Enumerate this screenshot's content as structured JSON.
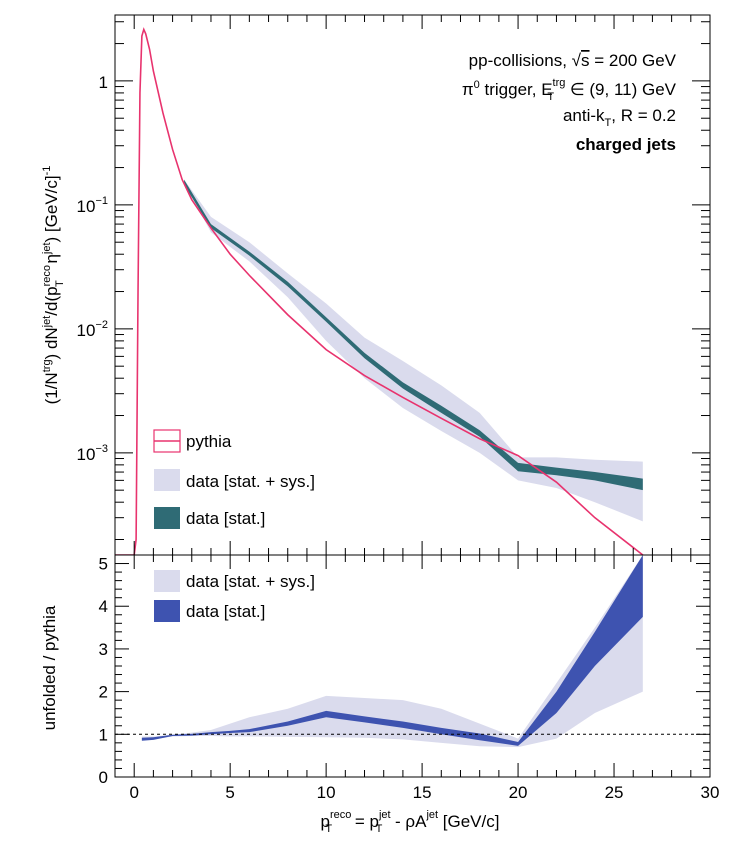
{
  "chart_data": [
    {
      "panel": "top",
      "type": "line",
      "yscale": "log",
      "xlim": [
        -1,
        30
      ],
      "ylim": [
        0.00015,
        3.4
      ],
      "ylabel": "(1/N^trg) dN^jet/d(p_T^reco η^jet) [GeV/c]^-1",
      "yticks": [
        {
          "value": 1,
          "label": "1"
        },
        {
          "value": 0.1,
          "label": "10",
          "exp": "−1"
        },
        {
          "value": 0.01,
          "label": "10",
          "exp": "−2"
        },
        {
          "value": 0.001,
          "label": "10",
          "exp": "−3"
        }
      ],
      "annotations": {
        "line1": {
          "pre": "pp-collisions, ",
          "sqrt": "s",
          "post": " = 200 GeV"
        },
        "line2": {
          "pre": "π",
          "sup0": "0",
          "mid": " trigger, E",
          "sup": "trg",
          "sub": "T",
          "post": " ∈ (9, 11) GeV"
        },
        "line3": {
          "pre": "anti-k",
          "sub": "T",
          "post": ", R = 0.2"
        },
        "line4": "charged jets"
      },
      "legend": [
        {
          "label": "pythia",
          "style": "line",
          "color": "#e8336e"
        },
        {
          "label": "data [stat. + sys.]",
          "style": "band",
          "color": "#dadbed"
        },
        {
          "label": "data [stat.]",
          "style": "band",
          "color": "#2f6b75"
        }
      ],
      "series": [
        {
          "name": "pythia",
          "color": "#e8336e",
          "x": [
            -1,
            0,
            0.1,
            0.2,
            0.3,
            0.4,
            0.5,
            0.6,
            0.8,
            1,
            1.5,
            2,
            2.5,
            3,
            4,
            5,
            6,
            8,
            10,
            12,
            14,
            16,
            18,
            20,
            22,
            24,
            26.5
          ],
          "y": [
            0.00015,
            0.00015,
            0.0002,
            0.02,
            0.8,
            2.3,
            2.6,
            2.4,
            1.8,
            1.2,
            0.55,
            0.28,
            0.16,
            0.11,
            0.065,
            0.04,
            0.027,
            0.013,
            0.0068,
            0.0042,
            0.0028,
            0.0019,
            0.0013,
            0.00095,
            0.00058,
            0.0003,
            0.00015
          ]
        },
        {
          "name": "data [stat. + sys.]",
          "color": "#dadbed",
          "x": [
            2.6,
            4,
            6,
            8,
            10,
            12,
            14,
            16,
            18,
            20,
            22,
            24,
            26.5
          ],
          "ylow": [
            0.15,
            0.06,
            0.035,
            0.018,
            0.008,
            0.004,
            0.0023,
            0.0015,
            0.001,
            0.0006,
            0.00052,
            0.0004,
            0.00028
          ],
          "yhigh": [
            0.16,
            0.08,
            0.05,
            0.028,
            0.016,
            0.0085,
            0.0055,
            0.0035,
            0.0021,
            0.00092,
            0.00092,
            0.00088,
            0.00085
          ]
        },
        {
          "name": "data [stat.]",
          "color": "#2f6b75",
          "x": [
            2.6,
            4,
            6,
            8,
            10,
            12,
            14,
            16,
            18,
            20,
            22,
            24,
            26.5
          ],
          "ylow": [
            0.145,
            0.065,
            0.039,
            0.022,
            0.0114,
            0.0058,
            0.0033,
            0.0021,
            0.00135,
            0.00071,
            0.00066,
            0.0006,
            0.0005
          ],
          "yhigh": [
            0.16,
            0.07,
            0.042,
            0.024,
            0.0124,
            0.0064,
            0.0037,
            0.0024,
            0.00152,
            0.00083,
            0.00076,
            0.0007,
            0.00062
          ]
        }
      ]
    },
    {
      "panel": "bottom",
      "type": "area",
      "xlim": [
        -1,
        30
      ],
      "ylim": [
        0,
        5.2
      ],
      "xlabel": {
        "p": "p",
        "sup1": "reco",
        "sub1": "T",
        "eq": " = p",
        "sup2": "jet",
        "sub2": "T",
        "rest": " - ρA",
        "sup3": "jet",
        "unit": " [GeV/c]"
      },
      "ylabel": "unfolded / pythia",
      "xticks": [
        0,
        5,
        10,
        15,
        20,
        25,
        30
      ],
      "yticks": [
        0,
        1,
        2,
        3,
        4,
        5
      ],
      "reference_line": 1,
      "legend": [
        {
          "label": "data [stat. + sys.]",
          "style": "band",
          "color": "#dadbed"
        },
        {
          "label": "data [stat.]",
          "style": "band",
          "color": "#3e53b0"
        }
      ],
      "series": [
        {
          "name": "data [stat. + sys.]",
          "color": "#dadbed",
          "x": [
            0.4,
            1,
            2,
            3,
            4,
            5,
            6,
            8,
            10,
            12,
            14,
            16,
            18,
            20,
            22,
            24,
            26.5
          ],
          "ylow": [
            0.86,
            0.88,
            0.95,
            0.96,
            0.96,
            0.95,
            0.95,
            0.94,
            0.93,
            0.92,
            0.88,
            0.8,
            0.72,
            0.7,
            0.9,
            1.5,
            2.0
          ],
          "yhigh": [
            0.95,
            0.95,
            0.99,
            1.04,
            1.1,
            1.25,
            1.4,
            1.6,
            1.9,
            1.85,
            1.8,
            1.6,
            1.25,
            0.9,
            2.2,
            3.5,
            5.2
          ]
        },
        {
          "name": "data [stat.]",
          "color": "#3e53b0",
          "x": [
            0.4,
            1,
            2,
            3,
            4,
            5,
            6,
            8,
            10,
            12,
            14,
            16,
            18,
            20,
            22,
            24,
            26.5
          ],
          "ylow": [
            0.85,
            0.87,
            0.96,
            0.97,
            1.0,
            1.03,
            1.05,
            1.2,
            1.4,
            1.28,
            1.15,
            1.0,
            0.86,
            0.73,
            1.5,
            2.6,
            3.75
          ],
          "yhigh": [
            0.92,
            0.93,
            0.99,
            1.01,
            1.05,
            1.08,
            1.12,
            1.3,
            1.55,
            1.42,
            1.3,
            1.15,
            1.02,
            0.82,
            2.0,
            3.4,
            5.2
          ]
        }
      ]
    }
  ]
}
